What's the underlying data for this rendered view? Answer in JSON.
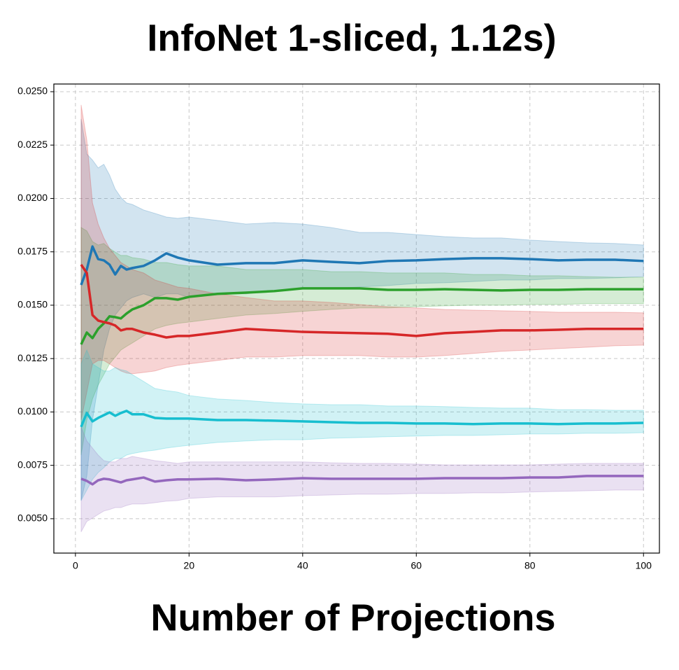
{
  "chart_data": {
    "type": "line",
    "title": "InfoNet 1-sliced, 1.12s)",
    "xlabel": "Number of Projections",
    "grid": true,
    "xlim": [
      -3.8,
      102.8
    ],
    "ylim": [
      0.00339,
      0.02536
    ],
    "xticks": [
      0,
      20,
      40,
      60,
      80,
      100
    ],
    "yticks": [
      {
        "value": 0.005,
        "label": "0.0050"
      },
      {
        "value": 0.0075,
        "label": "0.0075"
      },
      {
        "value": 0.01,
        "label": "0.0100"
      },
      {
        "value": 0.0125,
        "label": "0.0125"
      },
      {
        "value": 0.015,
        "label": "0.0150"
      },
      {
        "value": 0.0175,
        "label": "0.0175"
      },
      {
        "value": 0.02,
        "label": "0.0200"
      },
      {
        "value": 0.0225,
        "label": "0.0225"
      },
      {
        "value": 0.025,
        "label": "0.0250"
      }
    ],
    "x": [
      1,
      2,
      3,
      4,
      5,
      6,
      7,
      8,
      9,
      10,
      12,
      14,
      16,
      18,
      20,
      25,
      30,
      35,
      40,
      45,
      50,
      55,
      60,
      65,
      70,
      75,
      80,
      85,
      90,
      95,
      100
    ],
    "series": [
      {
        "color": "#1f77b4",
        "values": [
          0.01595,
          0.01667,
          0.01775,
          0.01716,
          0.0171,
          0.0169,
          0.01644,
          0.01684,
          0.01667,
          0.01674,
          0.01684,
          0.0171,
          0.01743,
          0.01723,
          0.0171,
          0.0169,
          0.01697,
          0.01697,
          0.0171,
          0.01703,
          0.01697,
          0.01707,
          0.0171,
          0.01716,
          0.0172,
          0.0172,
          0.01716,
          0.0171,
          0.01713,
          0.01713,
          0.01707
        ],
        "upper": [
          0.02372,
          0.02208,
          0.0218,
          0.02143,
          0.0216,
          0.0211,
          0.02044,
          0.02005,
          0.01979,
          0.01972,
          0.01946,
          0.0193,
          0.01913,
          0.01907,
          0.01913,
          0.01897,
          0.0188,
          0.01887,
          0.0188,
          0.01864,
          0.01841,
          0.01841,
          0.01831,
          0.01821,
          0.01815,
          0.01815,
          0.01805,
          0.01798,
          0.01792,
          0.01789,
          0.01782
        ],
        "lower": [
          0.00585,
          0.007,
          0.00962,
          0.01126,
          0.0129,
          0.01389,
          0.01454,
          0.01487,
          0.0152,
          0.01536,
          0.01553,
          0.01536,
          0.01553,
          0.01553,
          0.01536,
          0.01553,
          0.01553,
          0.01569,
          0.01579,
          0.01579,
          0.01585,
          0.01592,
          0.01602,
          0.01605,
          0.01611,
          0.01618,
          0.01618,
          0.01625,
          0.01625,
          0.01628,
          0.01634
        ]
      },
      {
        "color": "#2ca02c",
        "values": [
          0.01316,
          0.01372,
          0.01346,
          0.01389,
          0.01415,
          0.01448,
          0.01444,
          0.01438,
          0.01461,
          0.0148,
          0.015,
          0.01533,
          0.01533,
          0.01526,
          0.01539,
          0.01553,
          0.01559,
          0.01566,
          0.01579,
          0.01579,
          0.01579,
          0.01572,
          0.01572,
          0.01575,
          0.01572,
          0.01569,
          0.01572,
          0.01572,
          0.01575,
          0.01575,
          0.01575
        ],
        "upper": [
          0.01864,
          0.01848,
          0.01798,
          0.01782,
          0.01789,
          0.01766,
          0.01749,
          0.01733,
          0.01733,
          0.01723,
          0.01716,
          0.017,
          0.017,
          0.0169,
          0.01684,
          0.01684,
          0.01667,
          0.01667,
          0.01667,
          0.01657,
          0.01657,
          0.01651,
          0.01651,
          0.01651,
          0.01644,
          0.01644,
          0.01638,
          0.01638,
          0.01634,
          0.01631,
          0.01631
        ],
        "lower": [
          0.00798,
          0.00962,
          0.01061,
          0.01126,
          0.01175,
          0.01225,
          0.01257,
          0.0129,
          0.01307,
          0.01323,
          0.01356,
          0.01389,
          0.01405,
          0.01415,
          0.01421,
          0.01438,
          0.01454,
          0.01461,
          0.01471,
          0.0148,
          0.01487,
          0.01487,
          0.01493,
          0.01497,
          0.015,
          0.015,
          0.01503,
          0.01503,
          0.01507,
          0.01507,
          0.01507
        ]
      },
      {
        "color": "#d62728",
        "values": [
          0.0169,
          0.01651,
          0.01454,
          0.01428,
          0.01421,
          0.01415,
          0.01405,
          0.01382,
          0.01389,
          0.01389,
          0.01372,
          0.01362,
          0.01349,
          0.01356,
          0.01356,
          0.01372,
          0.01389,
          0.01382,
          0.01375,
          0.01372,
          0.01369,
          0.01366,
          0.01356,
          0.01369,
          0.01375,
          0.01382,
          0.01382,
          0.01385,
          0.01389,
          0.01389,
          0.01389
        ],
        "upper": [
          0.02438,
          0.02274,
          0.01979,
          0.0188,
          0.01815,
          0.01766,
          0.01733,
          0.017,
          0.01684,
          0.01667,
          0.01651,
          0.01618,
          0.01602,
          0.01585,
          0.01579,
          0.01553,
          0.01536,
          0.0152,
          0.0152,
          0.01513,
          0.01503,
          0.01493,
          0.01487,
          0.0148,
          0.01477,
          0.01474,
          0.01471,
          0.01467,
          0.01467,
          0.01467,
          0.01464
        ],
        "lower": [
          0.00962,
          0.01093,
          0.01225,
          0.01241,
          0.01241,
          0.01225,
          0.01208,
          0.01192,
          0.01182,
          0.01179,
          0.01185,
          0.01192,
          0.01208,
          0.01218,
          0.01225,
          0.01241,
          0.01257,
          0.01257,
          0.01264,
          0.01264,
          0.01264,
          0.01257,
          0.01257,
          0.01264,
          0.01274,
          0.01284,
          0.0129,
          0.01297,
          0.01303,
          0.0131,
          0.01313
        ]
      },
      {
        "color": "#17becf",
        "values": [
          0.0093,
          0.00995,
          0.00956,
          0.00972,
          0.00985,
          0.00998,
          0.00982,
          0.00995,
          0.01005,
          0.00989,
          0.00989,
          0.00972,
          0.00969,
          0.00969,
          0.00969,
          0.00962,
          0.00962,
          0.00959,
          0.00956,
          0.00952,
          0.00949,
          0.00949,
          0.00946,
          0.00946,
          0.00943,
          0.00946,
          0.00946,
          0.00943,
          0.00946,
          0.00946,
          0.00949
        ],
        "upper": [
          0.01225,
          0.0129,
          0.01225,
          0.01208,
          0.01192,
          0.01192,
          0.01208,
          0.01198,
          0.01192,
          0.01175,
          0.01143,
          0.0111,
          0.011,
          0.01093,
          0.01077,
          0.01061,
          0.01054,
          0.01044,
          0.01038,
          0.01034,
          0.01034,
          0.01028,
          0.01028,
          0.01025,
          0.01021,
          0.01018,
          0.01018,
          0.01011,
          0.01011,
          0.01008,
          0.01008
        ],
        "lower": [
          0.00585,
          0.00634,
          0.00684,
          0.00716,
          0.00739,
          0.00766,
          0.00782,
          0.00782,
          0.00798,
          0.00805,
          0.00815,
          0.00821,
          0.00831,
          0.00838,
          0.00844,
          0.00857,
          0.00864,
          0.0087,
          0.0087,
          0.00877,
          0.0088,
          0.00884,
          0.00887,
          0.0089,
          0.0089,
          0.00893,
          0.00897,
          0.00897,
          0.009,
          0.009,
          0.00903
        ]
      },
      {
        "color": "#9467bd",
        "values": [
          0.00687,
          0.00677,
          0.00661,
          0.0068,
          0.00687,
          0.00684,
          0.00677,
          0.0067,
          0.0068,
          0.00684,
          0.00693,
          0.00674,
          0.0068,
          0.00684,
          0.00684,
          0.00687,
          0.0068,
          0.00684,
          0.0069,
          0.00687,
          0.00687,
          0.00687,
          0.00687,
          0.0069,
          0.0069,
          0.0069,
          0.00693,
          0.00693,
          0.007,
          0.007,
          0.007
        ],
        "upper": [
          0.0093,
          0.00864,
          0.00831,
          0.00798,
          0.00772,
          0.00766,
          0.00766,
          0.00782,
          0.00782,
          0.00792,
          0.00782,
          0.00772,
          0.00766,
          0.00759,
          0.00766,
          0.00766,
          0.00766,
          0.00766,
          0.00766,
          0.00762,
          0.00759,
          0.00759,
          0.00756,
          0.00752,
          0.00752,
          0.00752,
          0.00752,
          0.00756,
          0.00759,
          0.00759,
          0.00759
        ],
        "lower": [
          0.00438,
          0.00487,
          0.00503,
          0.0052,
          0.00536,
          0.00543,
          0.00552,
          0.00552,
          0.00562,
          0.00569,
          0.00569,
          0.00575,
          0.00582,
          0.00585,
          0.00595,
          0.00602,
          0.00602,
          0.00602,
          0.00608,
          0.00611,
          0.00615,
          0.00615,
          0.00618,
          0.00618,
          0.00621,
          0.00621,
          0.00625,
          0.00628,
          0.00631,
          0.00634,
          0.00634
        ]
      }
    ]
  }
}
